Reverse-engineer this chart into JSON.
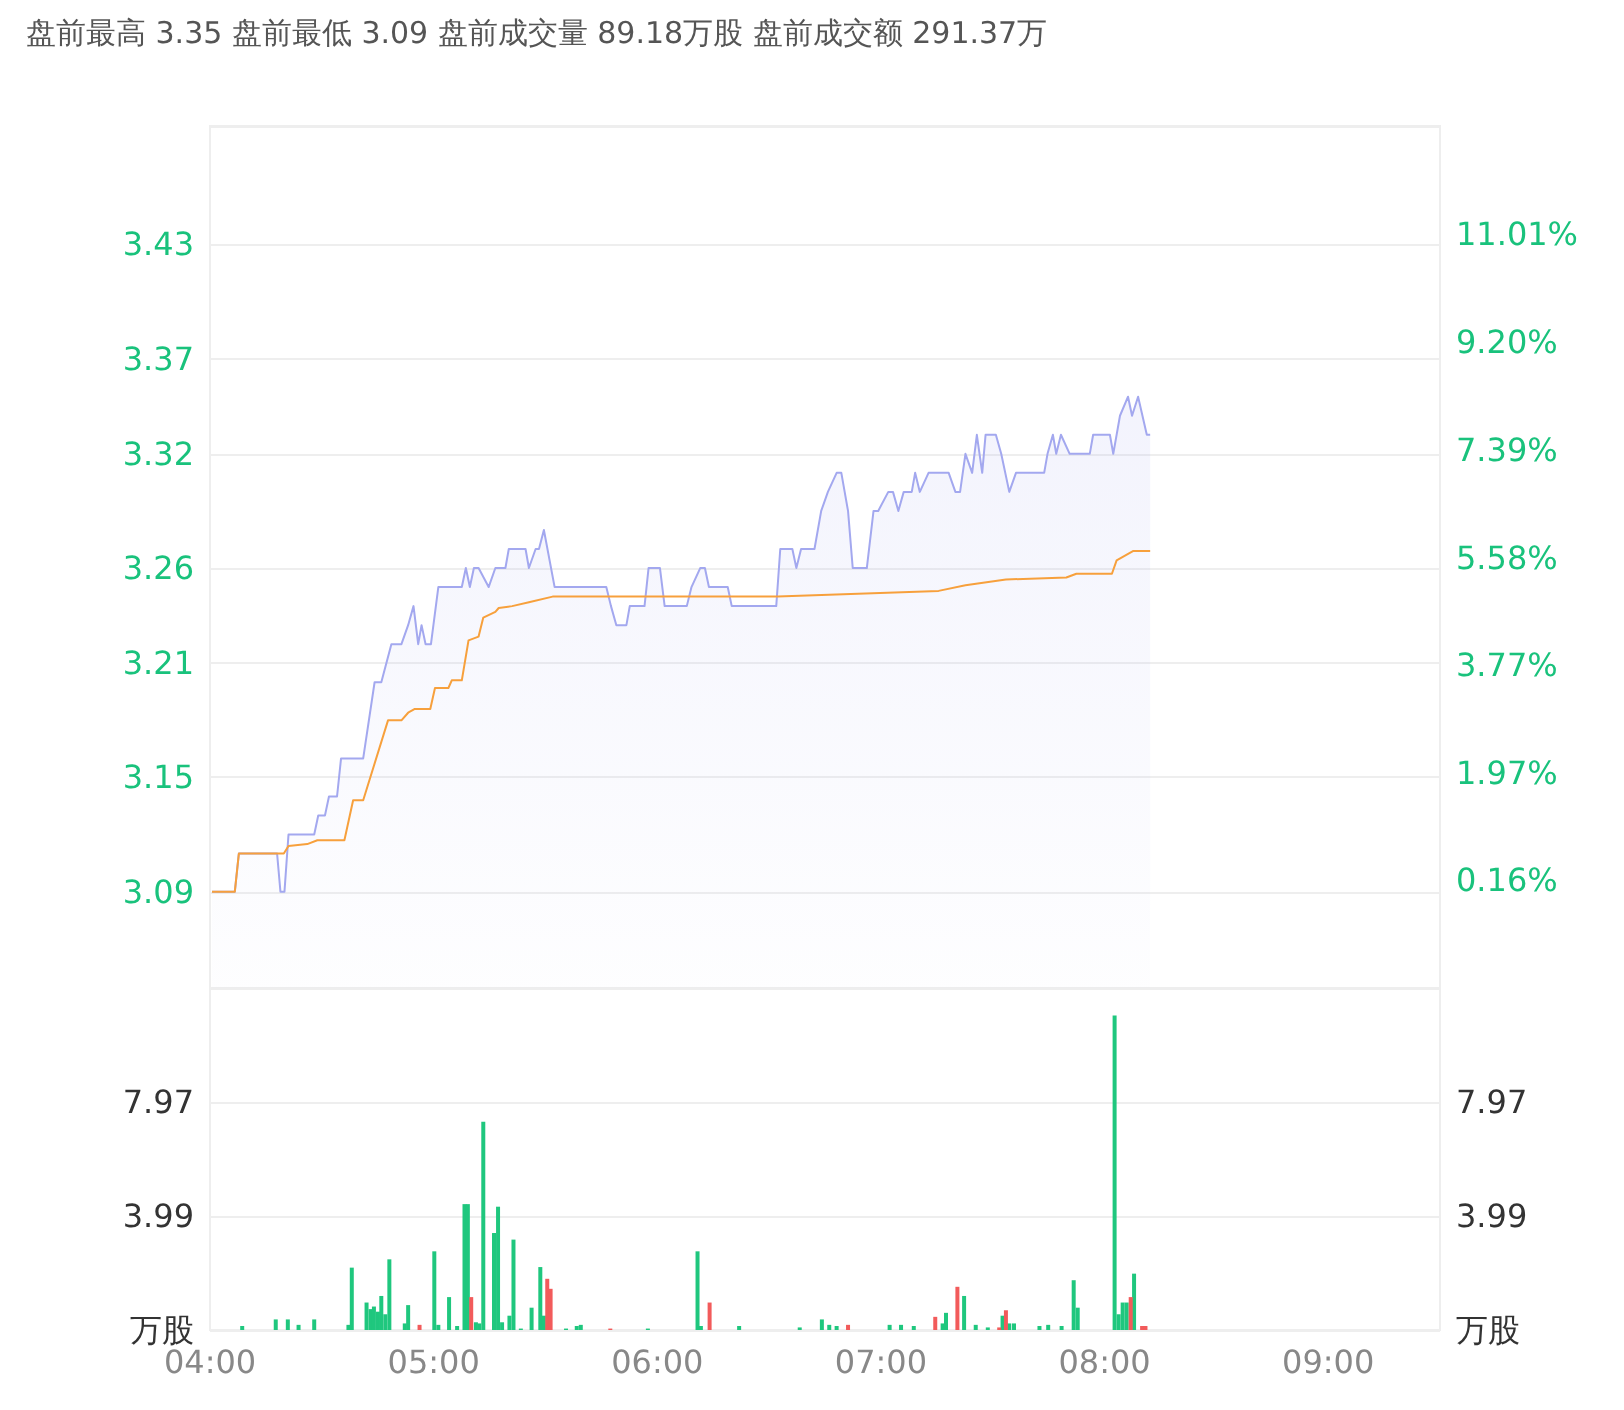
{
  "chart_data": [
    {
      "type": "area",
      "title": "盘前最高 3.35 盘前最低 3.09 盘前成交量 89.18万股 盘前成交额 291.37万",
      "xlim": [
        4,
        9.5
      ],
      "ylim": [
        3.0394,
        3.4922
      ],
      "yticks": [
        {
          "value": 3.0394,
          "label": null
        },
        3.09,
        3.15,
        3.21,
        3.26,
        3.32,
        3.37,
        3.43,
        {
          "value": 3.4922,
          "label": null
        }
      ],
      "y2lim": [
        -1.65,
        12.83
      ],
      "y2ticks": [
        {
          "value": -1.65,
          "label": null
        },
        {
          "value": 0.16,
          "label": "0.16%"
        },
        {
          "value": 1.97,
          "label": "1.97%"
        },
        {
          "value": 3.77,
          "label": "3.77%"
        },
        {
          "value": 5.58,
          "label": "5.58%"
        },
        {
          "value": 7.39,
          "label": "7.39%"
        },
        {
          "value": 9.2,
          "label": "9.20%"
        },
        {
          "value": 11.01,
          "label": "11.01%"
        },
        {
          "value": 12.83,
          "label": null
        }
      ],
      "tick_labels": "y",
      "grid": "y",
      "marker": "none",
      "series": [
        {
          "color": "#a3a8ef",
          "x": [
            4.009,
            4.111,
            4.129,
            4.3,
            4.315,
            4.333,
            4.351,
            4.466,
            4.484,
            4.514,
            4.532,
            4.568,
            4.586,
            4.685,
            4.736,
            4.766,
            4.811,
            4.856,
            4.886,
            4.91,
            4.931,
            4.946,
            4.964,
            4.988,
            5.021,
            5.126,
            5.144,
            5.162,
            5.18,
            5.201,
            5.246,
            5.276,
            5.321,
            5.336,
            5.411,
            5.426,
            5.456,
            5.471,
            5.493,
            5.541,
            5.772,
            5.793,
            5.817,
            5.862,
            5.877,
            5.943,
            5.961,
            6.012,
            6.033,
            6.132,
            6.153,
            6.192,
            6.213,
            6.231,
            6.315,
            6.333,
            6.532,
            6.55,
            6.604,
            6.622,
            6.643,
            6.703,
            6.733,
            6.763,
            6.802,
            6.823,
            6.853,
            6.874,
            6.937,
            6.967,
            6.988,
            7.033,
            7.054,
            7.078,
            7.102,
            7.138,
            7.153,
            7.174,
            7.213,
            7.303,
            7.333,
            7.354,
            7.378,
            7.408,
            7.429,
            7.453,
            7.468,
            7.514,
            7.538,
            7.574,
            7.604,
            7.73,
            7.745,
            7.769,
            7.784,
            7.805,
            7.844,
            7.934,
            7.949,
            8.024,
            8.039,
            8.069,
            8.105,
            8.123,
            8.15,
            8.189,
            8.204
          ],
          "values": [
            3.09,
            3.09,
            3.11,
            3.11,
            3.09,
            3.09,
            3.12,
            3.12,
            3.13,
            3.13,
            3.14,
            3.14,
            3.16,
            3.16,
            3.2,
            3.2,
            3.22,
            3.22,
            3.23,
            3.24,
            3.22,
            3.23,
            3.22,
            3.22,
            3.25,
            3.25,
            3.26,
            3.25,
            3.26,
            3.26,
            3.25,
            3.26,
            3.26,
            3.27,
            3.27,
            3.26,
            3.27,
            3.27,
            3.28,
            3.25,
            3.25,
            3.24,
            3.23,
            3.23,
            3.24,
            3.24,
            3.26,
            3.26,
            3.24,
            3.24,
            3.25,
            3.26,
            3.26,
            3.25,
            3.25,
            3.24,
            3.24,
            3.27,
            3.27,
            3.26,
            3.27,
            3.27,
            3.29,
            3.3,
            3.31,
            3.31,
            3.29,
            3.26,
            3.26,
            3.29,
            3.29,
            3.3,
            3.3,
            3.29,
            3.3,
            3.3,
            3.31,
            3.3,
            3.31,
            3.31,
            3.3,
            3.3,
            3.32,
            3.31,
            3.33,
            3.31,
            3.33,
            3.33,
            3.32,
            3.3,
            3.31,
            3.31,
            3.32,
            3.33,
            3.32,
            3.33,
            3.32,
            3.32,
            3.33,
            3.33,
            3.32,
            3.34,
            3.35,
            3.34,
            3.35,
            3.33,
            3.33
          ]
        },
        {
          "type": "line",
          "color": "#f7a03c",
          "x": [
            4.009,
            4.111,
            4.129,
            4.33,
            4.351,
            4.435,
            4.48,
            4.601,
            4.64,
            4.685,
            4.796,
            4.856,
            4.886,
            4.916,
            4.985,
            5.006,
            5.066,
            5.081,
            5.126,
            5.156,
            5.201,
            5.222,
            5.276,
            5.291,
            5.351,
            5.426,
            5.532,
            5.757,
            6.538,
            7.258,
            7.378,
            7.559,
            7.829,
            7.874,
            8.033,
            8.054,
            8.129,
            8.204
          ],
          "values": [
            3.09,
            3.09,
            3.11,
            3.11,
            3.114,
            3.115,
            3.117,
            3.117,
            3.138,
            3.138,
            3.18,
            3.18,
            3.184,
            3.186,
            3.186,
            3.197,
            3.197,
            3.201,
            3.201,
            3.222,
            3.224,
            3.234,
            3.237,
            3.239,
            3.24,
            3.242,
            3.245,
            3.245,
            3.245,
            3.248,
            3.251,
            3.254,
            3.255,
            3.257,
            3.257,
            3.264,
            3.269,
            3.269
          ]
        }
      ]
    },
    {
      "type": "bar",
      "xlim": [
        4,
        9.5
      ],
      "xticks": [
        {
          "value": 4,
          "label": "04:00"
        },
        {
          "value": 5,
          "label": "05:00"
        },
        {
          "value": 6,
          "label": "06:00"
        },
        {
          "value": 7,
          "label": "07:00"
        },
        {
          "value": 8,
          "label": "08:00"
        },
        {
          "value": 9,
          "label": "09:00"
        }
      ],
      "ylim": [
        0,
        11.955
      ],
      "yticks": [
        {
          "value": 0,
          "label": "万股"
        },
        {
          "value": 3.985,
          "label": "3.99"
        },
        {
          "value": 7.97,
          "label": "7.97"
        },
        {
          "value": 11.955,
          "label": null
        }
      ],
      "y2lim": [
        0,
        11.955
      ],
      "y2ticks": [
        {
          "value": 0,
          "label": "万股"
        },
        {
          "value": 3.985,
          "label": "3.99"
        },
        {
          "value": 7.97,
          "label": "7.97"
        },
        {
          "value": 11.955,
          "label": null
        }
      ],
      "grid": "y",
      "series": [
        {
          "color": "#1fc77e",
          "x": [
            4.144,
            4.294,
            4.348,
            4.396,
            4.466,
            4.619,
            4.634,
            4.7,
            4.718,
            4.733,
            4.751,
            4.766,
            4.784,
            4.802,
            4.871,
            4.886,
            5.003,
            5.021,
            5.069,
            5.105,
            5.138,
            5.153,
            5.189,
            5.204,
            5.222,
            5.27,
            5.288,
            5.306,
            5.339,
            5.357,
            5.39,
            5.438,
            5.477,
            5.493,
            5.592,
            5.64,
            5.658,
            5.958,
            6.18,
            6.195,
            6.366,
            6.637,
            6.736,
            6.769,
            6.802,
            7.039,
            7.09,
            7.147,
            7.276,
            7.291,
            7.372,
            7.424,
            7.478,
            7.544,
            7.574,
            7.595,
            7.709,
            7.748,
            7.808,
            7.862,
            7.88,
            8.045,
            8.063,
            8.081,
            8.099,
            8.132
          ],
          "values": [
            0.14,
            0.37,
            0.37,
            0.18,
            0.37,
            0.18,
            2.18,
            0.96,
            0.73,
            0.82,
            0.64,
            1.19,
            0.55,
            2.47,
            0.23,
            0.87,
            2.75,
            0.18,
            1.15,
            0.14,
            4.4,
            4.4,
            0.27,
            0.23,
            7.28,
            3.39,
            4.31,
            0.27,
            0.5,
            3.16,
            0.05,
            0.78,
            2.2,
            0.5,
            0.05,
            0.14,
            0.18,
            0.05,
            2.75,
            0.14,
            0.14,
            0.09,
            0.37,
            0.18,
            0.14,
            0.18,
            0.18,
            0.14,
            0.23,
            0.6,
            1.19,
            0.18,
            0.09,
            0.5,
            0.23,
            0.23,
            0.14,
            0.18,
            0.14,
            1.74,
            0.78,
            10.99,
            0.55,
            0.96,
            0.96,
            1.97
          ]
        },
        {
          "color": "#f25b5b",
          "x": [
            4.937,
            5.168,
            5.508,
            5.523,
            5.79,
            6.234,
            6.853,
            7.243,
            7.342,
            7.529,
            7.559,
            8.117,
            8.168,
            8.183
          ],
          "values": [
            0.18,
            1.15,
            1.79,
            1.44,
            0.05,
            0.96,
            0.18,
            0.46,
            1.51,
            0.09,
            0.69,
            1.15,
            0.14,
            0.14
          ]
        }
      ]
    }
  ]
}
